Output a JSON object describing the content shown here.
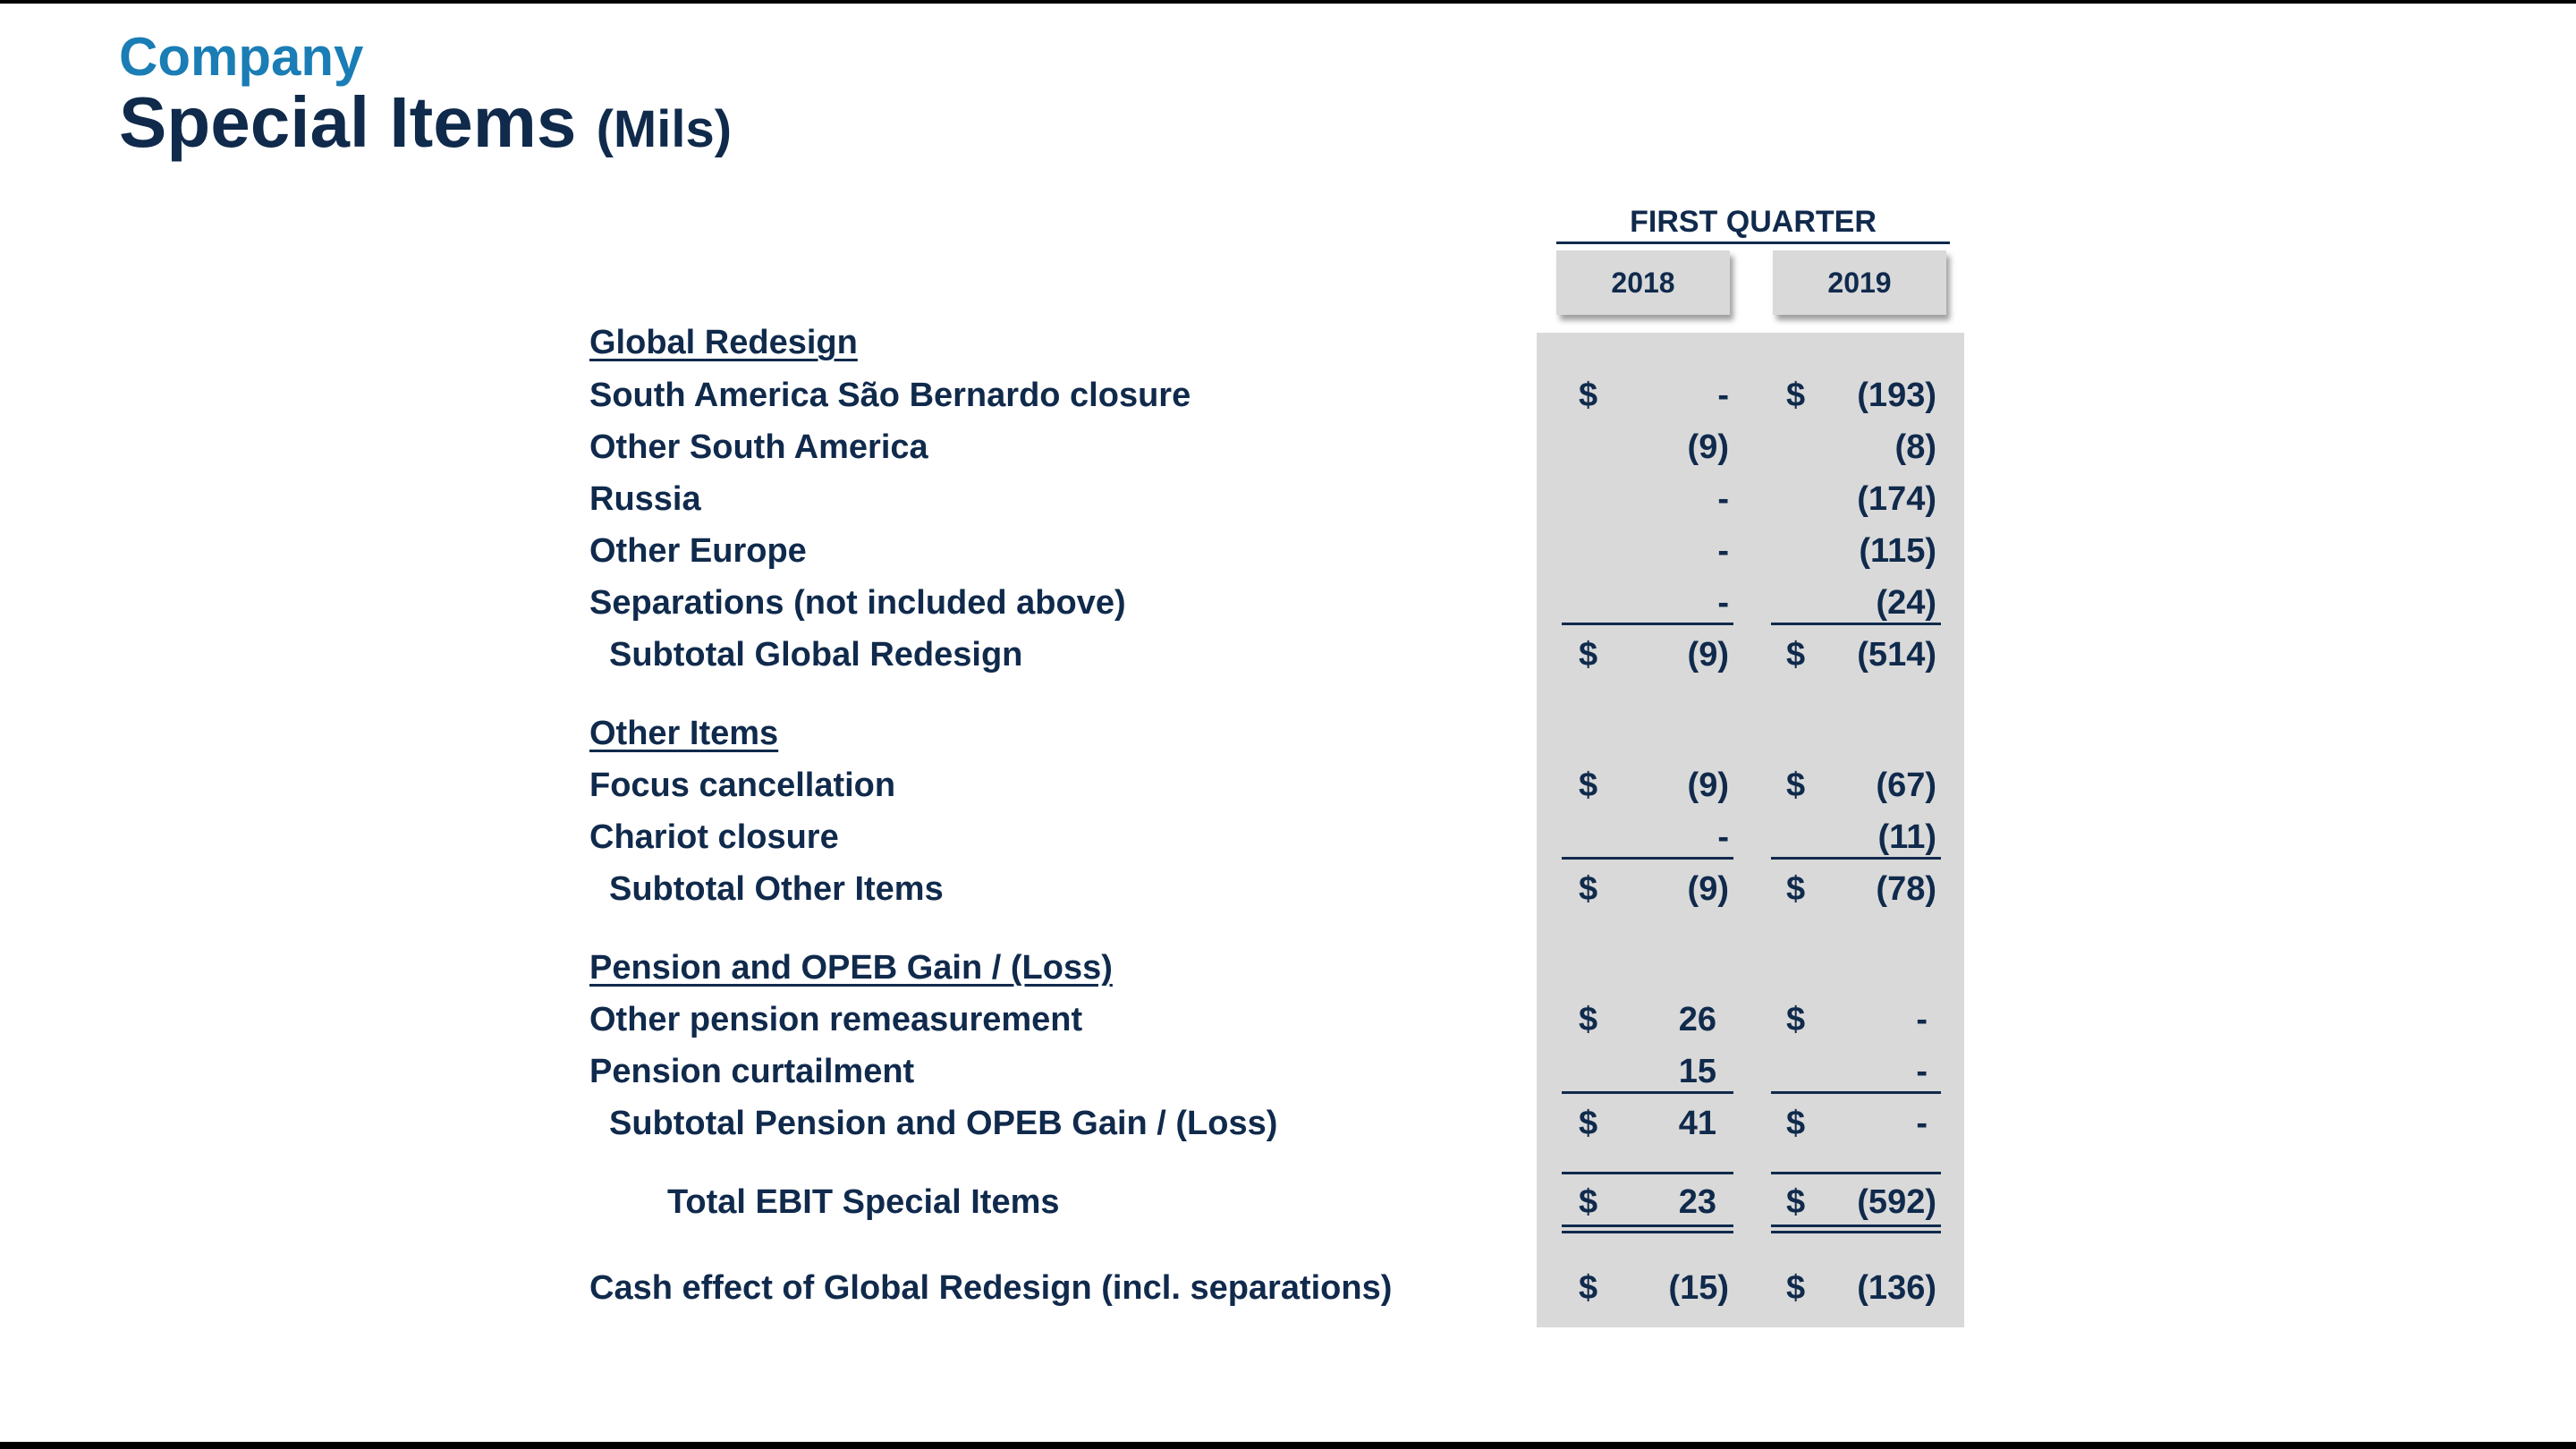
{
  "header": {
    "company": "Company",
    "title": "Special Items",
    "unit": "(Mils)"
  },
  "table": {
    "period": "FIRST QUARTER",
    "years": [
      "2018",
      "2019"
    ],
    "rows": [
      {
        "label": "Global Redesign",
        "type": "header"
      },
      {
        "label": "South America São Bernardo closure",
        "dollar": true,
        "v2018": "-",
        "v2019": "(193)"
      },
      {
        "label": "Other South America",
        "v2018": "(9)",
        "v2019": "(8)"
      },
      {
        "label": "Russia",
        "v2018": "-",
        "v2019": "(174)"
      },
      {
        "label": "Other Europe",
        "v2018": "-",
        "v2019": "(115)"
      },
      {
        "label": "Separations (not included above)",
        "v2018": "-",
        "v2019": "(24)"
      },
      {
        "label": "Subtotal Global Redesign",
        "type": "subtotal",
        "dollar": true,
        "v2018": "(9)",
        "v2019": "(514)"
      },
      {
        "label": "Other Items",
        "type": "header"
      },
      {
        "label": "Focus cancellation",
        "dollar": true,
        "v2018": "(9)",
        "v2019": "(67)"
      },
      {
        "label": "Chariot closure",
        "v2018": "-",
        "v2019": "(11)"
      },
      {
        "label": "Subtotal Other Items",
        "type": "subtotal",
        "dollar": true,
        "v2018": "(9)",
        "v2019": "(78)"
      },
      {
        "label": "Pension and OPEB Gain / (Loss)",
        "type": "header"
      },
      {
        "label": "Other pension remeasurement",
        "dollar": true,
        "v2018": "26",
        "v2019": "-"
      },
      {
        "label": "Pension curtailment",
        "v2018": "15",
        "v2019": "-"
      },
      {
        "label": "Subtotal Pension and OPEB Gain / (Loss)",
        "type": "subtotal",
        "dollar": true,
        "v2018": "41",
        "v2019": "-"
      },
      {
        "label": "Total EBIT Special Items",
        "type": "total",
        "dollar": true,
        "v2018": "23",
        "v2019": "(592)"
      },
      {
        "label": "Cash effect of Global Redesign (incl. separations)",
        "dollar": true,
        "v2018": "(15)",
        "v2019": "(136)"
      }
    ],
    "currency_symbol": "$"
  }
}
